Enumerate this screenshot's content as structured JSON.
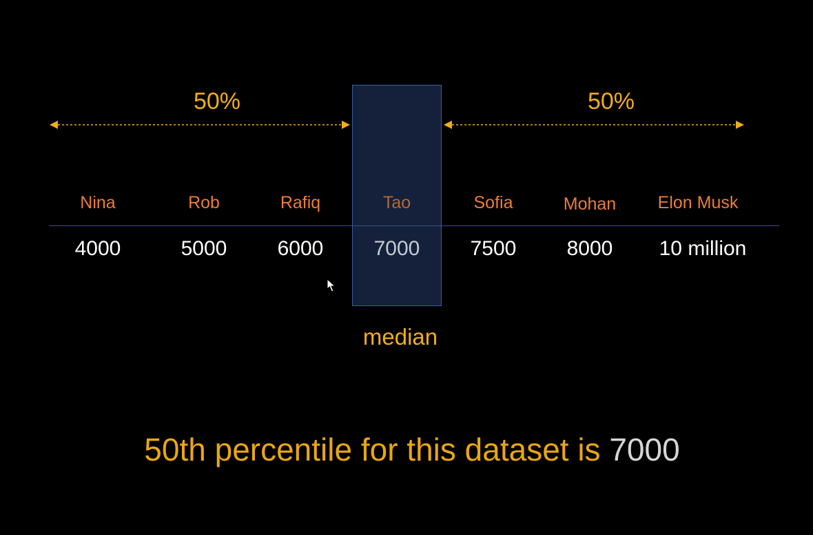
{
  "left_percent": "50%",
  "right_percent": "50%",
  "people": [
    {
      "name": "Nina",
      "value": "4000"
    },
    {
      "name": "Rob",
      "value": "5000"
    },
    {
      "name": "Rafiq",
      "value": "6000"
    },
    {
      "name": "Tao",
      "value": "7000"
    },
    {
      "name": "Sofia",
      "value": "7500"
    },
    {
      "name": "Mohan",
      "value": "8000"
    },
    {
      "name": "Elon Musk",
      "value": "10 million"
    }
  ],
  "median_label": "median",
  "caption": {
    "text": "50th percentile for this dataset is ",
    "value": "7000"
  },
  "colors": {
    "accent": "#f0ae18",
    "name": "#ec7d36",
    "median_fill": "#15213a",
    "median_border": "#3a5ea2"
  }
}
